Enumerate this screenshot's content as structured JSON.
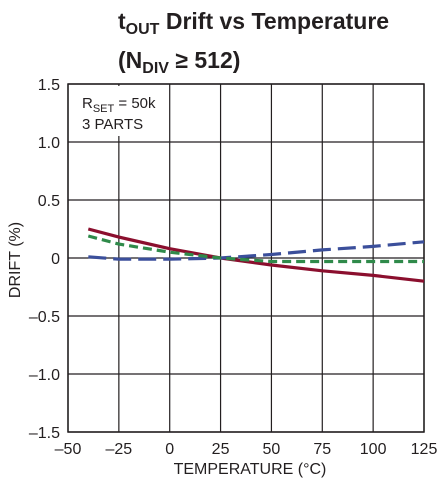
{
  "title": {
    "line1_a": "t",
    "line1_sub": "OUT",
    "line1_b": " Drift vs Temperature",
    "line2_a": "(N",
    "line2_sub": "DIV",
    "line2_b": " ≥ 512)"
  },
  "annotation": {
    "line1_a": "R",
    "line1_sub": "SET",
    "line1_b": " = 50k",
    "line2": "3 PARTS"
  },
  "colors": {
    "series_1": "#8b0f2e",
    "series_2": "#3b4f9b",
    "series_3": "#2f8a4a",
    "grid": "#231f20"
  },
  "chart_data": {
    "type": "line",
    "xlabel": "TEMPERATURE (°C)",
    "ylabel": "DRIFT (%)",
    "xlim": [
      -50,
      125
    ],
    "ylim": [
      -1.5,
      1.5
    ],
    "x_ticks": [
      -50,
      -25,
      0,
      25,
      50,
      75,
      100,
      125
    ],
    "x_tick_labels": [
      "–50",
      "–25",
      "0",
      "25",
      "50",
      "75",
      "100",
      "125"
    ],
    "y_ticks": [
      1.5,
      1.0,
      0.5,
      0,
      -0.5,
      -1.0,
      -1.5
    ],
    "y_tick_labels": [
      "1.5",
      "1.0",
      "0.5",
      "0",
      "–0.5",
      "–1.0",
      "–1.5"
    ],
    "grid": true,
    "series": [
      {
        "style": "solid",
        "color": "#8b0f2e",
        "x": [
          -40,
          -25,
          0,
          25,
          50,
          75,
          100,
          125
        ],
        "values": [
          0.25,
          0.18,
          0.08,
          0.0,
          -0.06,
          -0.11,
          -0.15,
          -0.2
        ]
      },
      {
        "style": "long-dash",
        "color": "#3b4f9b",
        "x": [
          -40,
          -25,
          0,
          25,
          50,
          75,
          100,
          125
        ],
        "values": [
          0.01,
          -0.01,
          -0.01,
          0.0,
          0.03,
          0.07,
          0.1,
          0.14
        ]
      },
      {
        "style": "short-dash",
        "color": "#2f8a4a",
        "x": [
          -40,
          -25,
          0,
          25,
          50,
          75,
          100,
          125
        ],
        "values": [
          0.19,
          0.12,
          0.05,
          0.0,
          -0.03,
          -0.03,
          -0.03,
          -0.03
        ]
      }
    ]
  }
}
